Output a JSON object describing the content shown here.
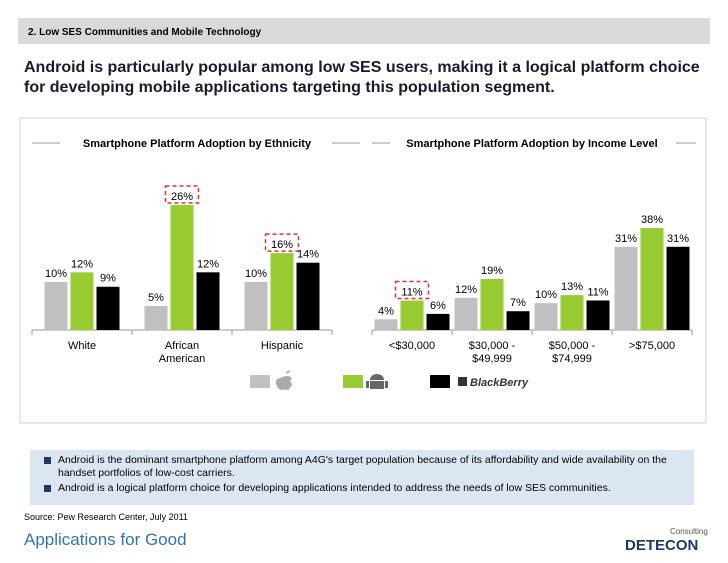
{
  "header": "2. Low SES Communities and Mobile Technology",
  "headline": "Android is particularly popular among low SES users, making it a logical platform choice for developing mobile applications targeting this population segment.",
  "chart_data": [
    {
      "type": "bar",
      "title": "Smartphone Platform Adoption by Ethnicity",
      "categories": [
        "White",
        "African\nAmerican",
        "Hispanic"
      ],
      "series": [
        {
          "color": "#c0c0c0",
          "values": [
            10,
            5,
            10
          ],
          "value_labels": [
            "10%",
            "5%",
            "10%"
          ]
        },
        {
          "color": "#99cc33",
          "values": [
            12,
            26,
            16
          ],
          "value_labels": [
            "12%",
            "26%",
            "16%"
          ]
        },
        {
          "color": "#000000",
          "values": [
            9,
            12,
            14
          ],
          "value_labels": [
            "9%",
            "12%",
            "14%"
          ]
        }
      ]
    },
    {
      "type": "bar",
      "title": "Smartphone Platform Adoption by Income Level",
      "categories": [
        "<$30,000",
        "$30,000 -\n$49,999",
        "$50,000 -\n$74,999",
        ">$75,000"
      ],
      "series": [
        {
          "color": "#c0c0c0",
          "values": [
            4,
            12,
            10,
            31
          ],
          "value_labels": [
            "4%",
            "12%",
            "10%",
            "31%"
          ]
        },
        {
          "color": "#99cc33",
          "values": [
            11,
            19,
            13,
            38
          ],
          "value_labels": [
            "11%",
            "19%",
            "13%",
            "38%"
          ]
        },
        {
          "color": "#000000",
          "values": [
            6,
            7,
            11,
            31
          ],
          "value_labels": [
            "6%",
            "7%",
            "11%",
            "31%"
          ]
        }
      ]
    }
  ],
  "legend_brand": "BlackBerry",
  "bullets": [
    "Android is the dominant smartphone platform among A4G's target population because of its affordability and wide availability on the handset portfolios of low-cost carriers.",
    "Android is a logical platform choice for developing applications intended to address the needs of low SES communities."
  ],
  "source": "Source: Pew Research Center, July 2011",
  "logo_left": "Applications for Good",
  "logo_right_small": "Consulting",
  "logo_right": "DETECON"
}
